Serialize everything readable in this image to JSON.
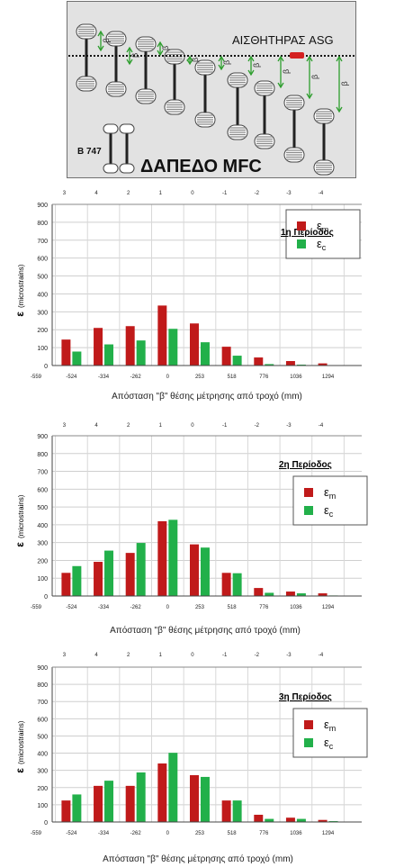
{
  "diagram": {
    "sensor_label": "ΑΙΣΘΗΤΗΡΑΣ ASG",
    "aircraft_label": "B 747",
    "floor_label": "ΔΑΠΕΔΟ MFC",
    "beta_symbol": "β",
    "colors": {
      "background": "#e2e2e2",
      "gear_ring": "#8a8a8a",
      "arrow": "#2e9e2e",
      "sensor": "#d42020"
    }
  },
  "chart_data": [
    {
      "type": "bar",
      "title": "1η Περίοδος",
      "xlabel": "Απόσταση  \"β\" θέσης μέτρησης από τροχό (mm)",
      "ylabel_main": "ε",
      "ylabel_unit": "(microstrains)",
      "ylim": [
        0,
        900
      ],
      "yticks": [
        "0",
        "100",
        "200",
        "300",
        "400",
        "500",
        "600",
        "700",
        "800",
        "900"
      ],
      "edge_label": "-559",
      "categories": [
        "-524",
        "-334",
        "-262",
        "0",
        "253",
        "518",
        "776",
        "1036",
        "1294"
      ],
      "top_categories": [
        "3",
        "4",
        "2",
        "1",
        "0",
        "-1",
        "-2",
        "-3",
        "-4"
      ],
      "grid": true,
      "legend_position": "right",
      "series": [
        {
          "name": "ε",
          "sub": "m",
          "color": "#c01a1a",
          "values": [
            145,
            210,
            220,
            335,
            235,
            105,
            45,
            25,
            12
          ]
        },
        {
          "name": "ε",
          "sub": "c",
          "color": "#22b04a",
          "values": [
            78,
            118,
            140,
            205,
            130,
            55,
            8,
            5,
            2
          ]
        }
      ]
    },
    {
      "type": "bar",
      "title": "2η Περίοδος",
      "xlabel": "Απόσταση  \"β\" θέσης μέτρησης από τροχό (mm)",
      "ylabel_main": "ε",
      "ylabel_unit": "(microstrains)",
      "ylim": [
        0,
        900
      ],
      "yticks": [
        "0",
        "100",
        "200",
        "300",
        "400",
        "500",
        "600",
        "700",
        "800",
        "900"
      ],
      "edge_label": "-559",
      "categories": [
        "-524",
        "-334",
        "-262",
        "0",
        "253",
        "518",
        "776",
        "1036",
        "1294"
      ],
      "top_categories": [
        "3",
        "4",
        "2",
        "1",
        "0",
        "-1",
        "-2",
        "-3",
        "-4"
      ],
      "grid": true,
      "legend_position": "right",
      "series": [
        {
          "name": "ε",
          "sub": "m",
          "color": "#c01a1a",
          "values": [
            130,
            192,
            242,
            420,
            290,
            130,
            45,
            25,
            15
          ]
        },
        {
          "name": "ε",
          "sub": "c",
          "color": "#22b04a",
          "values": [
            168,
            255,
            298,
            428,
            272,
            128,
            18,
            15,
            3
          ]
        }
      ]
    },
    {
      "type": "bar",
      "title": "3η Περίοδος",
      "xlabel": "Απόσταση  \"β\" θέσης μέτρησης από τροχό (mm)",
      "ylabel_main": "ε",
      "ylabel_unit": "(microstrains)",
      "ylim": [
        0,
        900
      ],
      "yticks": [
        "0",
        "100",
        "200",
        "300",
        "400",
        "500",
        "600",
        "700",
        "800",
        "900"
      ],
      "edge_label": "-559",
      "categories": [
        "-524",
        "-334",
        "-262",
        "0",
        "253",
        "518",
        "776",
        "1036",
        "1294"
      ],
      "top_categories": [
        "3",
        "4",
        "2",
        "1",
        "0",
        "-1",
        "-2",
        "-3",
        "-4"
      ],
      "grid": true,
      "legend_position": "right",
      "series": [
        {
          "name": "ε",
          "sub": "m",
          "color": "#c01a1a",
          "values": [
            125,
            210,
            210,
            340,
            272,
            125,
            42,
            25,
            12
          ]
        },
        {
          "name": "ε",
          "sub": "c",
          "color": "#22b04a",
          "values": [
            160,
            240,
            288,
            402,
            262,
            125,
            18,
            18,
            5
          ]
        }
      ]
    }
  ]
}
